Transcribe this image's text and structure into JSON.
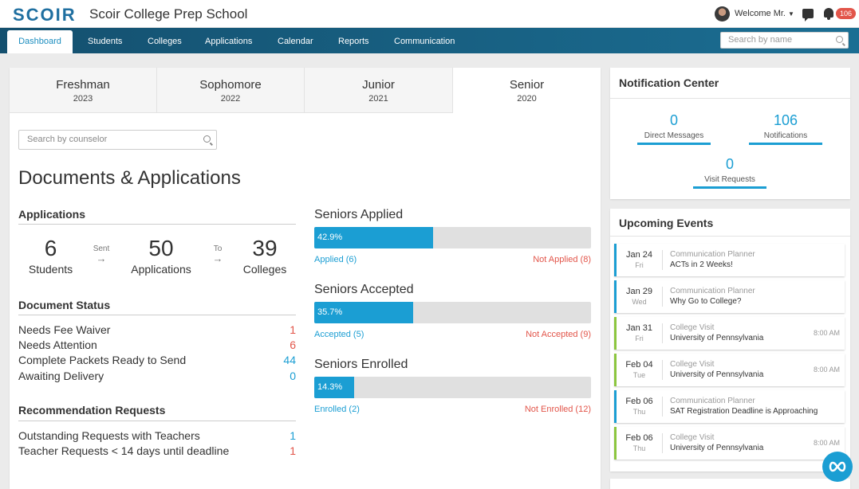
{
  "header": {
    "logo": "SCOIR",
    "school": "Scoir College Prep School",
    "welcome": "Welcome Mr.",
    "notification_count": "106"
  },
  "nav": {
    "items": [
      "Dashboard",
      "Students",
      "Colleges",
      "Applications",
      "Calendar",
      "Reports",
      "Communication"
    ],
    "active": "Dashboard",
    "search_placeholder": "Search by name"
  },
  "grades": [
    {
      "name": "Freshman",
      "year": "2023"
    },
    {
      "name": "Sophomore",
      "year": "2022"
    },
    {
      "name": "Junior",
      "year": "2021"
    },
    {
      "name": "Senior",
      "year": "2020"
    }
  ],
  "active_grade": "Senior",
  "counselor_search_placeholder": "Search by counselor",
  "page_title": "Documents & Applications",
  "applications": {
    "heading": "Applications",
    "students_count": "6",
    "students_label": "Students",
    "sent_label": "Sent",
    "applications_count": "50",
    "applications_label": "Applications",
    "to_label": "To",
    "colleges_count": "39",
    "colleges_label": "Colleges"
  },
  "document_status": {
    "heading": "Document Status",
    "rows": [
      {
        "label": "Needs Fee Waiver",
        "count": "1",
        "color": "red"
      },
      {
        "label": "Needs Attention",
        "count": "6",
        "color": "red"
      },
      {
        "label": "Complete Packets Ready to Send",
        "count": "44",
        "color": "blue"
      },
      {
        "label": "Awaiting Delivery",
        "count": "0",
        "color": "blue"
      }
    ]
  },
  "recommendation_requests": {
    "heading": "Recommendation Requests",
    "rows": [
      {
        "label": "Outstanding Requests with Teachers",
        "count": "1",
        "color": "blue"
      },
      {
        "label": "Teacher Requests < 14 days until deadline",
        "count": "1",
        "color": "red"
      }
    ]
  },
  "progress": [
    {
      "title": "Seniors Applied",
      "percent": 42.9,
      "percent_label": "42.9%",
      "left_label": "Applied (6)",
      "right_label": "Not Applied (8)"
    },
    {
      "title": "Seniors Accepted",
      "percent": 35.7,
      "percent_label": "35.7%",
      "left_label": "Accepted (5)",
      "right_label": "Not Accepted (9)"
    },
    {
      "title": "Seniors Enrolled",
      "percent": 14.3,
      "percent_label": "14.3%",
      "left_label": "Enrolled (2)",
      "right_label": "Not Enrolled (12)"
    }
  ],
  "notification_center": {
    "title": "Notification Center",
    "direct_messages_count": "0",
    "direct_messages_label": "Direct Messages",
    "notifications_count": "106",
    "notifications_label": "Notifications",
    "visit_requests_count": "0",
    "visit_requests_label": "Visit Requests"
  },
  "upcoming_events": {
    "title": "Upcoming Events",
    "events": [
      {
        "date": "Jan 24",
        "day": "Fri",
        "type": "Communication Planner",
        "name": "ACTs in 2 Weeks!",
        "time": "",
        "kind": "planner"
      },
      {
        "date": "Jan 29",
        "day": "Wed",
        "type": "Communication Planner",
        "name": "Why Go to College?",
        "time": "",
        "kind": "planner"
      },
      {
        "date": "Jan 31",
        "day": "Fri",
        "type": "College Visit",
        "name": "University of Pennsylvania",
        "time": "8:00 AM",
        "kind": "visit"
      },
      {
        "date": "Feb 04",
        "day": "Tue",
        "type": "College Visit",
        "name": "University of Pennsylvania",
        "time": "8:00 AM",
        "kind": "visit"
      },
      {
        "date": "Feb 06",
        "day": "Thu",
        "type": "Communication Planner",
        "name": "SAT Registration Deadline is Approaching",
        "time": "",
        "kind": "planner"
      },
      {
        "date": "Feb 06",
        "day": "Thu",
        "type": "College Visit",
        "name": "University of Pennsylvania",
        "time": "8:00 AM",
        "kind": "visit"
      }
    ]
  },
  "colors": {
    "accent": "#1b9ed3",
    "alert": "#e2554a",
    "visit": "#8cc63f",
    "nav": "#14506f"
  }
}
